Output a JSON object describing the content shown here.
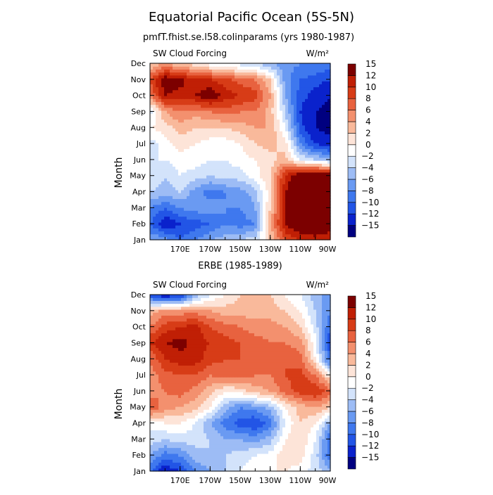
{
  "title": "Equatorial Pacific Ocean (5S-5N)",
  "subtitle": "pmfT.fhist.se.l58.colinparams (yrs 1980-1987)",
  "colormap": [
    "#000080",
    "#0a22cc",
    "#2255e6",
    "#3f78ee",
    "#6a9af2",
    "#9dbcf5",
    "#d3e3fb",
    "#ffffff",
    "#fde4d8",
    "#f9b99b",
    "#f3906e",
    "#e8623f",
    "#d73c17",
    "#c01f05",
    "#7c0000"
  ],
  "chart_data": [
    {
      "type": "heatmap",
      "id": "model",
      "panel_title": "",
      "left_label": "SW Cloud Forcing",
      "units_label": "W/m²",
      "ylabel": "Month",
      "xticklabels": [
        "170E",
        "170W",
        "150W",
        "130W",
        "110W",
        "90W"
      ],
      "xticks": [
        170,
        190,
        210,
        230,
        250,
        270
      ],
      "xlim": [
        150,
        270
      ],
      "yticklabels": [
        "Jan",
        "Feb",
        "Mar",
        "Apr",
        "May",
        "Jun",
        "Jul",
        "Aug",
        "Sep",
        "Oct",
        "Nov",
        "Dec"
      ],
      "levels": [
        -15,
        -12,
        -10,
        -8,
        -6,
        -4,
        -2,
        0,
        2,
        4,
        6,
        8,
        10,
        12,
        15
      ],
      "x": [
        150,
        160,
        170,
        180,
        190,
        200,
        210,
        220,
        230,
        240,
        250,
        260,
        270
      ],
      "z": [
        [
          -6,
          -7,
          -10,
          -8,
          -6,
          -5,
          -4,
          -3,
          2,
          8,
          10,
          11,
          10
        ],
        [
          -10,
          -14,
          -12,
          -11,
          -10,
          -8,
          -9,
          -8,
          4,
          12,
          15,
          15,
          14
        ],
        [
          -8,
          -10,
          -8,
          -7,
          -7,
          -8,
          -8,
          -6,
          2,
          12,
          16,
          17,
          16
        ],
        [
          -4,
          -5,
          -4,
          -7,
          -9,
          -8,
          -7,
          -5,
          1,
          12,
          16,
          17,
          16
        ],
        [
          -2,
          -4,
          -2,
          -3,
          -4,
          -3,
          -3,
          -1,
          2,
          10,
          15,
          16,
          15
        ],
        [
          -2,
          -2,
          -1,
          -1,
          -2,
          -2,
          -1,
          0,
          1,
          3,
          -2,
          -4,
          -5
        ],
        [
          -3,
          -1,
          1,
          0,
          -1,
          -1,
          0,
          2,
          3,
          1,
          -8,
          -12,
          -14
        ],
        [
          0,
          1,
          3,
          2,
          2,
          2,
          3,
          4,
          4,
          -2,
          -11,
          -15,
          -16
        ],
        [
          -3,
          4,
          6,
          5,
          6,
          7,
          6,
          6,
          3,
          -4,
          -12,
          -15,
          -16
        ],
        [
          6,
          12,
          11,
          12,
          14,
          11,
          10,
          9,
          4,
          -6,
          -11,
          -13,
          -15
        ],
        [
          8,
          14,
          13,
          10,
          10,
          9,
          7,
          6,
          2,
          -7,
          -10,
          -11,
          -12
        ],
        [
          2,
          4,
          2,
          1,
          -1,
          -2,
          -3,
          -4,
          -6,
          -7,
          -8,
          -8,
          -9
        ]
      ]
    },
    {
      "type": "heatmap",
      "id": "erbe",
      "panel_title": "ERBE (1985-1989)",
      "left_label": "SW Cloud Forcing",
      "units_label": "W/m²",
      "ylabel": "Month",
      "xticklabels": [
        "170E",
        "170W",
        "150W",
        "130W",
        "110W",
        "90W"
      ],
      "xticks": [
        170,
        190,
        210,
        230,
        250,
        270
      ],
      "xlim": [
        150,
        270
      ],
      "yticklabels": [
        "Jan",
        "Feb",
        "Mar",
        "Apr",
        "May",
        "Jun",
        "Jul",
        "Aug",
        "Sep",
        "Oct",
        "Nov",
        "Dec"
      ],
      "levels": [
        -15,
        -12,
        -10,
        -8,
        -6,
        -4,
        -2,
        0,
        2,
        4,
        6,
        8,
        10,
        12,
        15
      ],
      "x": [
        150,
        160,
        170,
        180,
        190,
        200,
        210,
        220,
        230,
        240,
        250,
        260,
        270
      ],
      "z": [
        [
          -10,
          -14,
          -12,
          -8,
          -6,
          -4,
          -2,
          -1,
          0,
          0,
          -1,
          -3,
          -5
        ],
        [
          -6,
          -9,
          -8,
          -5,
          -4,
          -4,
          -3,
          -2,
          -1,
          1,
          1,
          -3,
          -10
        ],
        [
          -3,
          -4,
          -3,
          -3,
          -4,
          -6,
          -6,
          -7,
          -5,
          0,
          2,
          -2,
          -10
        ],
        [
          -1,
          0,
          0,
          -2,
          -6,
          -9,
          -11,
          -12,
          -9,
          -2,
          2,
          0,
          -6
        ],
        [
          8,
          5,
          4,
          3,
          0,
          -5,
          -8,
          -7,
          -5,
          0,
          3,
          4,
          2
        ],
        [
          5,
          6,
          7,
          5,
          3,
          0,
          1,
          3,
          4,
          7,
          9,
          10,
          7
        ],
        [
          5,
          7,
          8,
          8,
          6,
          7,
          7,
          6,
          6,
          8,
          9,
          6,
          0
        ],
        [
          6,
          10,
          11,
          11,
          9,
          8,
          8,
          7,
          7,
          8,
          7,
          0,
          -10
        ],
        [
          10,
          12,
          13,
          11,
          10,
          9,
          8,
          7,
          6,
          6,
          5,
          -1,
          -12
        ],
        [
          6,
          9,
          10,
          11,
          8,
          7,
          6,
          5,
          5,
          4,
          2,
          -3,
          -10
        ],
        [
          3,
          5,
          5,
          5,
          4,
          3,
          3,
          3,
          3,
          2,
          0,
          -4,
          -8
        ],
        [
          -12,
          -14,
          -13,
          -6,
          -2,
          0,
          2,
          3,
          2,
          0,
          -2,
          -5,
          -8
        ]
      ]
    }
  ]
}
